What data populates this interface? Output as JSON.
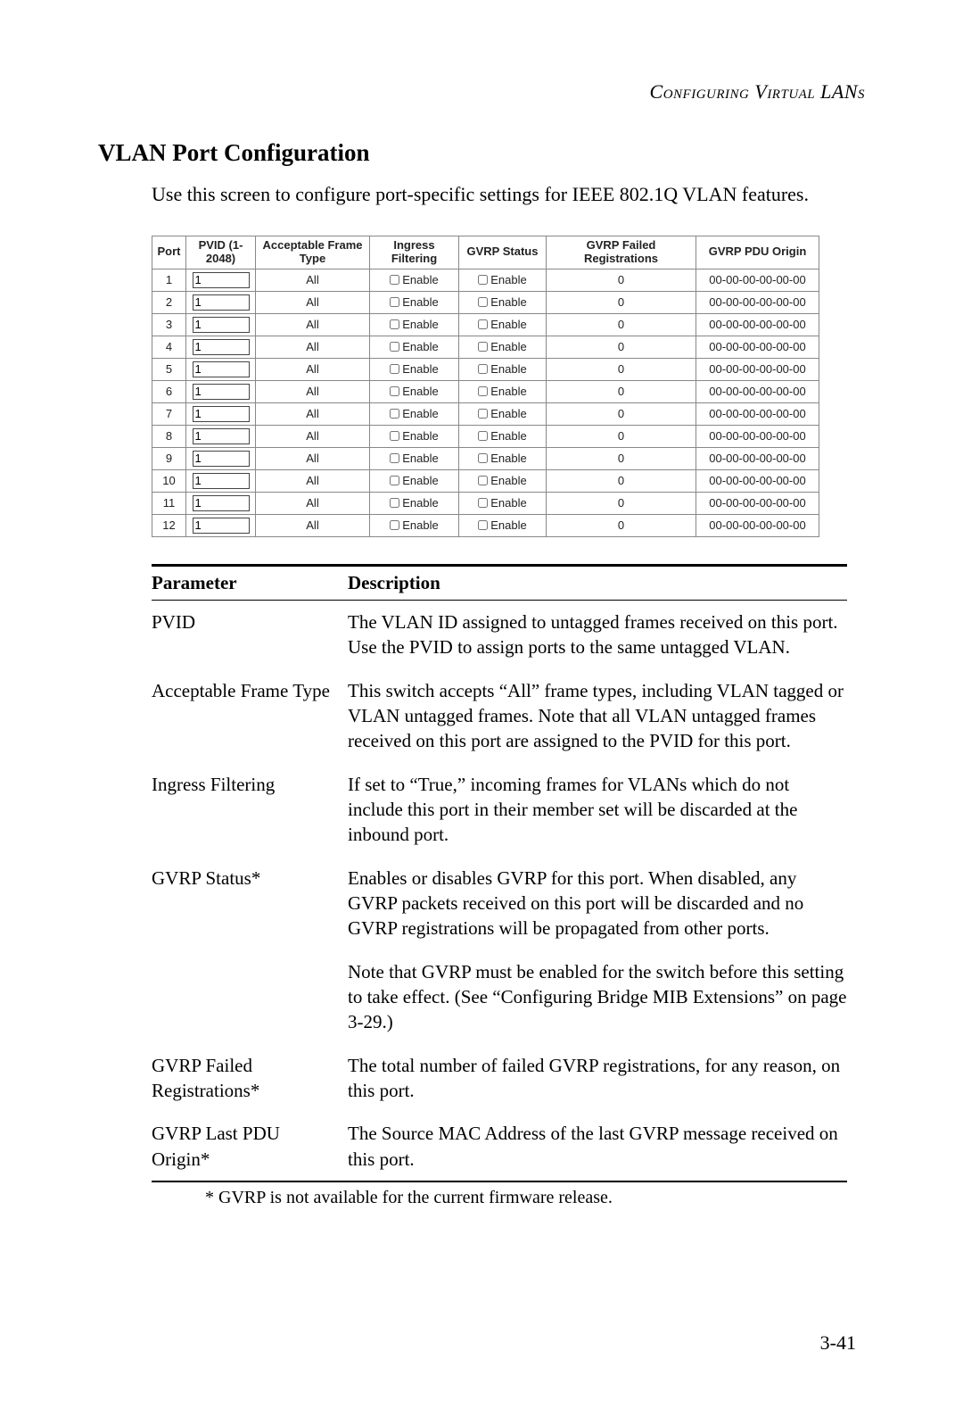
{
  "breadcrumb": "Configuring Virtual LANs",
  "section_title": "VLAN Port Configuration",
  "intro": "Use this screen to configure port-specific settings for IEEE 802.1Q VLAN features.",
  "config_table": {
    "headers": {
      "port": "Port",
      "pvid": "PVID (1-2048)",
      "aft": "Acceptable Frame Type",
      "ingress": "Ingress Filtering",
      "gvrp_status": "GVRP Status",
      "gvrp_failed": "GVRP Failed Registrations",
      "gvrp_pdu": "GVRP PDU Origin"
    },
    "rows": [
      {
        "port": "1",
        "pvid": "1",
        "aft": "All",
        "ingress": "Enable",
        "gvrp_status": "Enable",
        "failed": "0",
        "pdu": "00-00-00-00-00-00"
      },
      {
        "port": "2",
        "pvid": "1",
        "aft": "All",
        "ingress": "Enable",
        "gvrp_status": "Enable",
        "failed": "0",
        "pdu": "00-00-00-00-00-00"
      },
      {
        "port": "3",
        "pvid": "1",
        "aft": "All",
        "ingress": "Enable",
        "gvrp_status": "Enable",
        "failed": "0",
        "pdu": "00-00-00-00-00-00"
      },
      {
        "port": "4",
        "pvid": "1",
        "aft": "All",
        "ingress": "Enable",
        "gvrp_status": "Enable",
        "failed": "0",
        "pdu": "00-00-00-00-00-00"
      },
      {
        "port": "5",
        "pvid": "1",
        "aft": "All",
        "ingress": "Enable",
        "gvrp_status": "Enable",
        "failed": "0",
        "pdu": "00-00-00-00-00-00"
      },
      {
        "port": "6",
        "pvid": "1",
        "aft": "All",
        "ingress": "Enable",
        "gvrp_status": "Enable",
        "failed": "0",
        "pdu": "00-00-00-00-00-00"
      },
      {
        "port": "7",
        "pvid": "1",
        "aft": "All",
        "ingress": "Enable",
        "gvrp_status": "Enable",
        "failed": "0",
        "pdu": "00-00-00-00-00-00"
      },
      {
        "port": "8",
        "pvid": "1",
        "aft": "All",
        "ingress": "Enable",
        "gvrp_status": "Enable",
        "failed": "0",
        "pdu": "00-00-00-00-00-00"
      },
      {
        "port": "9",
        "pvid": "1",
        "aft": "All",
        "ingress": "Enable",
        "gvrp_status": "Enable",
        "failed": "0",
        "pdu": "00-00-00-00-00-00"
      },
      {
        "port": "10",
        "pvid": "1",
        "aft": "All",
        "ingress": "Enable",
        "gvrp_status": "Enable",
        "failed": "0",
        "pdu": "00-00-00-00-00-00"
      },
      {
        "port": "11",
        "pvid": "1",
        "aft": "All",
        "ingress": "Enable",
        "gvrp_status": "Enable",
        "failed": "0",
        "pdu": "00-00-00-00-00-00"
      },
      {
        "port": "12",
        "pvid": "1",
        "aft": "All",
        "ingress": "Enable",
        "gvrp_status": "Enable",
        "failed": "0",
        "pdu": "00-00-00-00-00-00"
      }
    ],
    "col_widths": {
      "port": 38,
      "pvid": 78,
      "aft": 128,
      "ingress": 100,
      "gvrp_status": 98,
      "gvrp_failed": 168,
      "gvrp_pdu": 138
    }
  },
  "param_table": {
    "headers": {
      "param": "Parameter",
      "desc": "Description"
    },
    "rows": [
      {
        "param": "PVID",
        "desc": "The VLAN ID assigned to untagged frames received on this port. Use the PVID to assign ports to the same untagged VLAN."
      },
      {
        "param": "Acceptable Frame Type",
        "desc": "This switch accepts “All” frame types, including VLAN tagged or VLAN untagged frames. Note that all VLAN untagged frames received on this port are assigned to the PVID for this port."
      },
      {
        "param": "Ingress Filtering",
        "desc": "If set to “True,” incoming frames for VLANs which do not include this port in their member set will be discarded at the inbound port."
      },
      {
        "param": "GVRP Status*",
        "desc": "Enables or disables GVRP for this port. When disabled, any GVRP packets received on this port will be discarded and no GVRP registrations will be propagated from other ports."
      },
      {
        "param": "",
        "desc": "Note that GVRP must be enabled for the switch before this setting to take effect. (See “Configuring Bridge MIB Extensions” on page 3-29.)"
      },
      {
        "param": "GVRP Failed Registrations*",
        "desc": "The total number of failed GVRP registrations, for any reason, on this port."
      },
      {
        "param": "GVRP Last PDU Origin*",
        "desc": "The Source MAC Address of the last GVRP message received on this port."
      }
    ]
  },
  "footnote": "* GVRP is not available for the current firmware release.",
  "page_number": "3-41",
  "colors": {
    "text": "#000000",
    "border": "#888888",
    "bg": "#ffffff"
  }
}
